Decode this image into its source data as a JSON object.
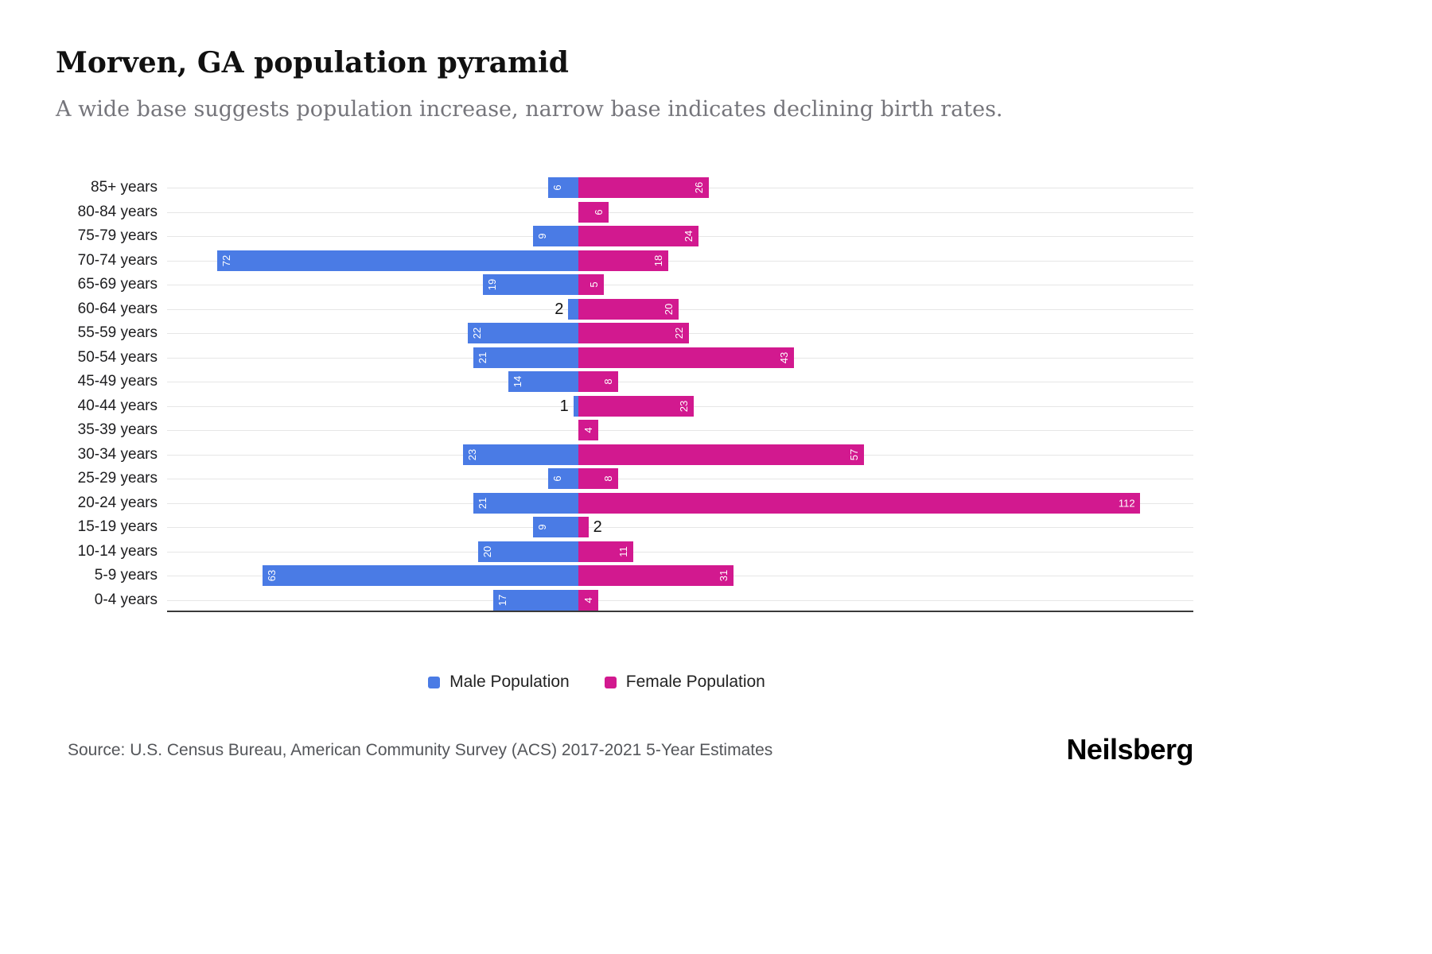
{
  "header": {
    "title": "Morven, GA population pyramid",
    "subtitle": "A wide base suggests population increase, narrow base indicates declining birth rates."
  },
  "chart_data": {
    "type": "bar",
    "variant": "population-pyramid",
    "orientation": "horizontal",
    "categories": [
      "85+ years",
      "80-84 years",
      "75-79 years",
      "70-74 years",
      "65-69 years",
      "60-64 years",
      "55-59 years",
      "50-54 years",
      "45-49 years",
      "40-44 years",
      "35-39 years",
      "30-34 years",
      "25-29 years",
      "20-24 years",
      "15-19 years",
      "10-14 years",
      "5-9 years",
      "0-4 years"
    ],
    "series": [
      {
        "name": "Male Population",
        "color": "#4A7BE5",
        "values": [
          6,
          0,
          9,
          72,
          19,
          2,
          22,
          21,
          14,
          1,
          0,
          23,
          6,
          21,
          9,
          20,
          63,
          17
        ]
      },
      {
        "name": "Female Population",
        "color": "#D2198F",
        "values": [
          26,
          6,
          24,
          18,
          5,
          20,
          22,
          43,
          8,
          23,
          4,
          57,
          8,
          112,
          2,
          11,
          31,
          4
        ]
      }
    ],
    "value_labels": "shown-on-bars",
    "xlim": [
      0,
      112
    ],
    "grid": "horizontal-light",
    "legend_position": "bottom"
  },
  "footer": {
    "source": "Source: U.S. Census Bureau, American Community Survey (ACS) 2017-2021 5-Year Estimates",
    "brand": "Neilsberg"
  }
}
